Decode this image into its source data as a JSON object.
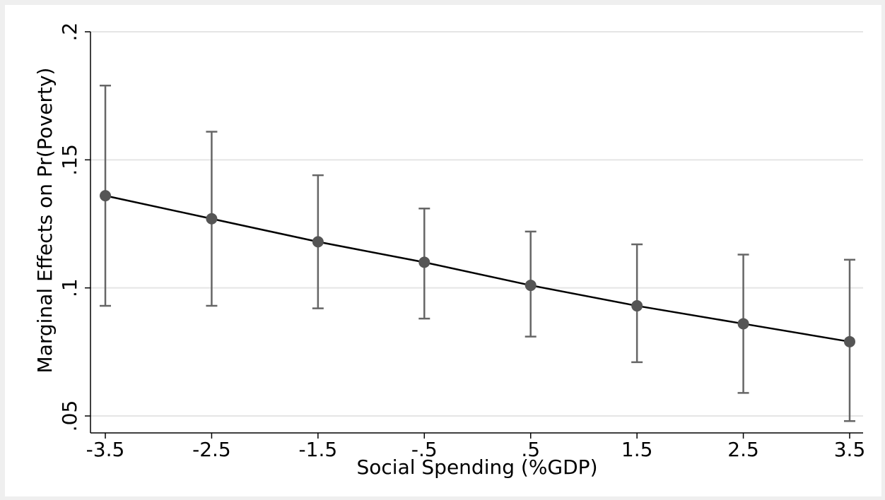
{
  "chart_data": {
    "type": "scatter",
    "title": "",
    "xlabel": "Social Spending (%GDP)",
    "ylabel": "Marginal Effects on Pr(Poverty)",
    "x_ticks": [
      -3.5,
      -2.5,
      -1.5,
      -0.5,
      0.5,
      1.5,
      2.5,
      3.5
    ],
    "x_tick_labels": [
      "-3.5",
      "-2.5",
      "-1.5",
      "-.5",
      ".5",
      "1.5",
      "2.5",
      "3.5"
    ],
    "y_ticks": [
      0.05,
      0.1,
      0.15,
      0.2
    ],
    "y_tick_labels": [
      ".05",
      ".1",
      ".15",
      ".2"
    ],
    "xlim": [
      -3.5,
      3.5
    ],
    "ylim": [
      0.05,
      0.2
    ],
    "grid": "horizontal",
    "series": [
      {
        "x": [
          -3.5,
          -2.5,
          -1.5,
          -0.5,
          0.5,
          1.5,
          2.5,
          3.5
        ],
        "y": [
          0.136,
          0.127,
          0.118,
          0.11,
          0.101,
          0.093,
          0.086,
          0.079
        ],
        "ci_upper": [
          0.179,
          0.161,
          0.144,
          0.131,
          0.122,
          0.117,
          0.113,
          0.111
        ],
        "ci_lower": [
          0.093,
          0.093,
          0.092,
          0.088,
          0.081,
          0.071,
          0.059,
          0.048
        ]
      }
    ],
    "colors": {
      "background_outer": "#efefef",
      "plot_background": "#ffffff",
      "line": "#000000",
      "marker": "#555555",
      "error_bar": "#666666",
      "grid": "#e5e5e5"
    }
  }
}
